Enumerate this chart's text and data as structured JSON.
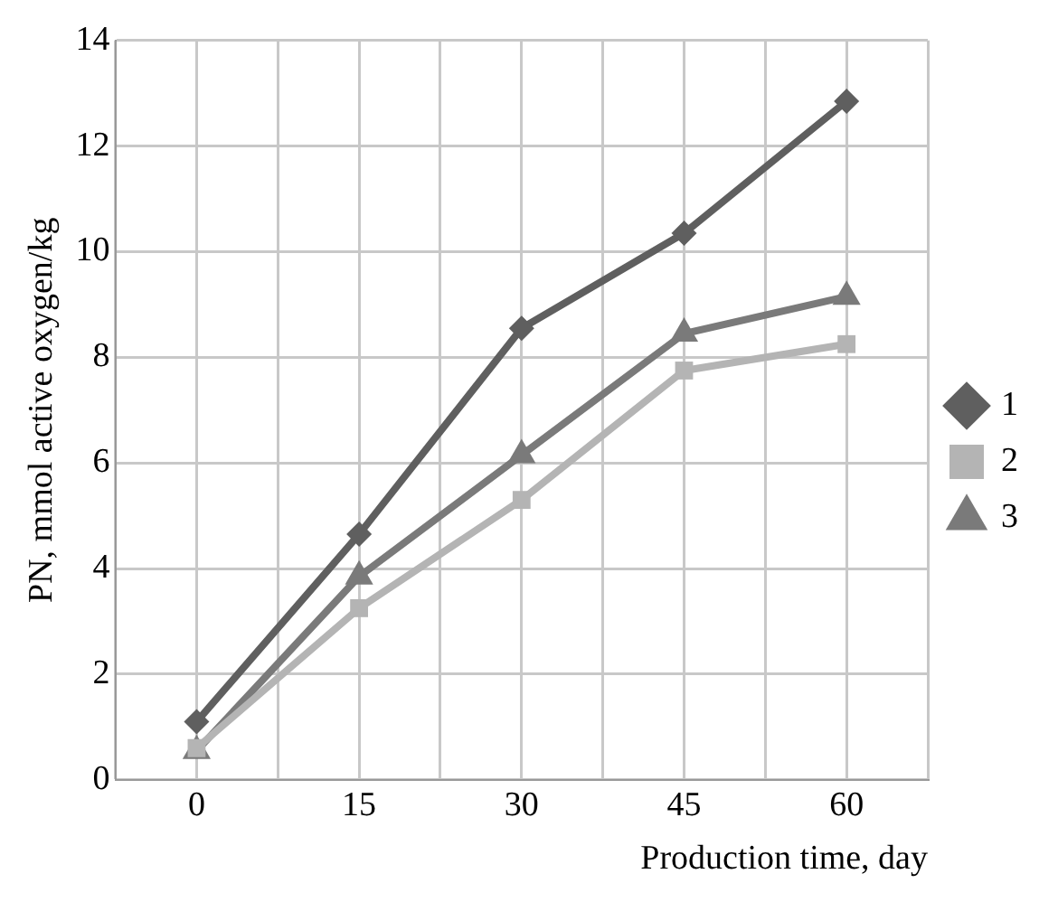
{
  "chart_data": {
    "type": "line",
    "xlabel": "Production time, day",
    "ylabel": "PN, mmol active oxygen/kg",
    "x": [
      0,
      15,
      30,
      45,
      60
    ],
    "series": [
      {
        "name": "1",
        "color": "#5f5f5f",
        "marker": "diamond",
        "values": [
          1.1,
          4.65,
          8.55,
          10.35,
          12.85
        ]
      },
      {
        "name": "2",
        "color": "#b4b4b4",
        "marker": "square",
        "values": [
          0.6,
          3.25,
          5.3,
          7.75,
          8.25
        ]
      },
      {
        "name": "3",
        "color": "#7a7a7a",
        "marker": "triangle",
        "values": [
          0.55,
          3.85,
          6.15,
          8.45,
          9.15
        ]
      }
    ],
    "xlim": [
      -7.5,
      67.5
    ],
    "xticks": [
      {
        "value": -7.5,
        "label": null
      },
      0,
      {
        "value": 7.5,
        "label": null
      },
      15,
      {
        "value": 22.5,
        "label": null
      },
      30,
      {
        "value": 37.5,
        "label": null
      },
      45,
      {
        "value": 52.5,
        "label": null
      },
      60,
      {
        "value": 67.5,
        "label": null
      }
    ],
    "ylim": [
      0,
      14
    ],
    "yticks": [
      0,
      2,
      4,
      6,
      8,
      10,
      12,
      14
    ],
    "grid": true,
    "legend": "right",
    "line_style": "solid"
  }
}
